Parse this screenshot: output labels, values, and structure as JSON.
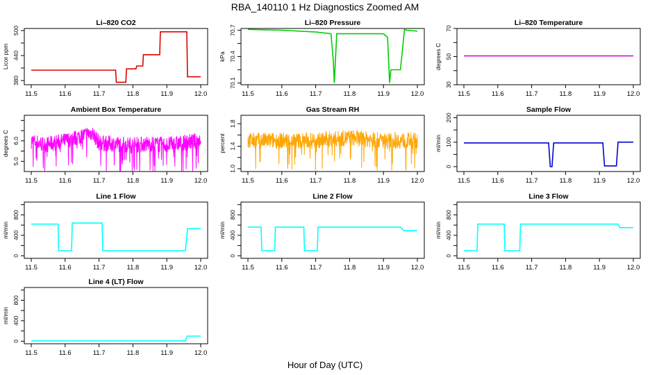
{
  "figure": {
    "title": "RBA_140110  1 Hz Diagnostics Zoomed AM",
    "xlabel": "Hour of Day (UTC)"
  },
  "chart_data": [
    {
      "type": "line",
      "title": "Li–820 CO2",
      "ylabel": "Licor ppm",
      "color": "#dd0000",
      "xlim": [
        11.5,
        12.0
      ],
      "xticks": [
        "11.5",
        "11.6",
        "11.7",
        "11.8",
        "11.9",
        "12.0"
      ],
      "ylim": [
        370,
        505
      ],
      "yticks": [
        "380",
        "440",
        "500"
      ],
      "ytick_values": [
        380,
        440,
        500
      ],
      "minor_yticks": [
        410,
        470
      ],
      "series": [
        {
          "x": [
            11.5,
            11.749,
            11.751,
            11.779,
            11.781,
            11.809,
            11.811,
            11.829,
            11.831,
            11.879,
            11.881,
            11.959,
            11.961,
            12.0
          ],
          "y": [
            405,
            405,
            376,
            376,
            408,
            408,
            415,
            415,
            442,
            442,
            497,
            497,
            389,
            389
          ]
        }
      ]
    },
    {
      "type": "line",
      "title": "Li–820 Pressure",
      "ylabel": "kPa",
      "color": "#00cc00",
      "xlim": [
        11.5,
        12.0
      ],
      "xticks": [
        "11.5",
        "11.6",
        "11.7",
        "11.8",
        "11.9",
        "12.0"
      ],
      "ylim": [
        70.08,
        70.72
      ],
      "yticks": [
        "70.1",
        "70.4",
        "70.7"
      ],
      "ytick_values": [
        70.1,
        70.4,
        70.7
      ],
      "minor_yticks": [
        70.25,
        70.55
      ],
      "series": [
        {
          "x": [
            11.5,
            11.6,
            11.7,
            11.745,
            11.752,
            11.755,
            11.762,
            11.8,
            11.9,
            11.912,
            11.918,
            11.922,
            11.93,
            11.95,
            11.962,
            11.968,
            12.0
          ],
          "y": [
            70.71,
            70.7,
            70.68,
            70.66,
            70.35,
            70.1,
            70.66,
            70.66,
            70.66,
            70.62,
            70.1,
            70.25,
            70.25,
            70.25,
            70.71,
            70.7,
            70.69
          ]
        }
      ]
    },
    {
      "type": "line",
      "title": "Li–820 Temperature",
      "ylabel": "degrees C",
      "color": "#cc00cc",
      "xlim": [
        11.5,
        12.0
      ],
      "xticks": [
        "11.5",
        "11.6",
        "11.7",
        "11.8",
        "11.9",
        "12.0"
      ],
      "ylim": [
        30,
        70
      ],
      "yticks": [
        "30",
        "50",
        "70"
      ],
      "ytick_values": [
        30,
        50,
        70
      ],
      "minor_yticks": [
        40,
        60
      ],
      "series": [
        {
          "x": [
            11.5,
            12.0
          ],
          "y": [
            50.5,
            50.5
          ]
        }
      ]
    },
    {
      "type": "line",
      "title": "Ambient Box Temperature",
      "ylabel": "degrees C",
      "color": "#ff00ff",
      "xlim": [
        11.5,
        12.0
      ],
      "xticks": [
        "11.5",
        "11.6",
        "11.7",
        "11.8",
        "11.9",
        "12.0"
      ],
      "ylim": [
        4.5,
        7.25
      ],
      "yticks": [
        "5.0",
        "6.0"
      ],
      "ytick_values": [
        5.0,
        6.0
      ],
      "minor_yticks": [
        5.5,
        6.5,
        7.0
      ],
      "series": [
        {
          "x": [
            11.5,
            11.54,
            11.6,
            11.64,
            11.68,
            11.7,
            11.75,
            11.8,
            11.85,
            11.9,
            11.95,
            11.99,
            12.0
          ],
          "y": [
            6.0,
            5.8,
            6.0,
            6.2,
            6.4,
            5.9,
            5.85,
            5.8,
            5.85,
            5.8,
            5.9,
            6.0,
            6.1
          ]
        }
      ]
    },
    {
      "type": "line",
      "title": "Gas Stream RH",
      "ylabel": "percent",
      "color": "#ffa500",
      "xlim": [
        11.5,
        12.0
      ],
      "xticks": [
        "11.5",
        "11.6",
        "11.7",
        "11.8",
        "11.9",
        "12.0"
      ],
      "ylim": [
        0.95,
        1.95
      ],
      "yticks": [
        "1.0",
        "1.4",
        "1.8"
      ],
      "ytick_values": [
        1.0,
        1.4,
        1.8
      ],
      "minor_yticks": [
        1.2,
        1.6
      ],
      "series": [
        {
          "x": [
            11.5,
            11.6,
            11.7,
            11.8,
            11.9,
            12.0
          ],
          "y": [
            1.5,
            1.5,
            1.5,
            1.55,
            1.5,
            1.5
          ]
        }
      ]
    },
    {
      "type": "line",
      "title": "Sample Flow",
      "ylabel": "ml/min",
      "color": "#0000cc",
      "xlim": [
        11.5,
        12.0
      ],
      "xticks": [
        "11.5",
        "11.6",
        "11.7",
        "11.8",
        "11.9",
        "12.0"
      ],
      "ylim": [
        -20,
        210
      ],
      "yticks": [
        "0",
        "100",
        "200"
      ],
      "ytick_values": [
        0,
        100,
        200
      ],
      "minor_yticks": [
        50,
        150
      ],
      "series": [
        {
          "x": [
            11.5,
            11.75,
            11.755,
            11.76,
            11.765,
            11.91,
            11.915,
            11.95,
            11.955,
            12.0
          ],
          "y": [
            97,
            97,
            0,
            0,
            97,
            97,
            3,
            3,
            100,
            100
          ]
        }
      ]
    },
    {
      "type": "line",
      "title": "Line 1 Flow",
      "ylabel": "ml/min",
      "color": "#00ffff",
      "xlim": [
        11.5,
        12.0
      ],
      "xticks": [
        "11.5",
        "11.6",
        "11.7",
        "11.8",
        "11.9",
        "12.0"
      ],
      "ylim": [
        -50,
        1050
      ],
      "yticks": [
        "0",
        "400",
        "800"
      ],
      "ytick_values": [
        0,
        400,
        800
      ],
      "minor_yticks": [
        200,
        600,
        1000
      ],
      "series": [
        {
          "x": [
            11.5,
            11.579,
            11.581,
            11.619,
            11.621,
            11.709,
            11.711,
            11.955,
            11.961,
            12.0
          ],
          "y": [
            620,
            620,
            100,
            100,
            640,
            640,
            100,
            100,
            530,
            530
          ]
        }
      ]
    },
    {
      "type": "line",
      "title": "Line 2 Flow",
      "ylabel": "ml/min",
      "color": "#00ffff",
      "xlim": [
        11.5,
        12.0
      ],
      "xticks": [
        "11.5",
        "11.6",
        "11.7",
        "11.8",
        "11.9",
        "12.0"
      ],
      "ylim": [
        -50,
        1050
      ],
      "yticks": [
        "0",
        "400",
        "800"
      ],
      "ytick_values": [
        0,
        400,
        800
      ],
      "minor_yticks": [
        200,
        600,
        1000
      ],
      "series": [
        {
          "x": [
            11.5,
            11.539,
            11.541,
            11.579,
            11.581,
            11.665,
            11.667,
            11.705,
            11.707,
            11.95,
            11.96,
            12.0
          ],
          "y": [
            560,
            560,
            100,
            100,
            560,
            560,
            100,
            100,
            560,
            560,
            490,
            490
          ]
        }
      ]
    },
    {
      "type": "line",
      "title": "Line 3 Flow",
      "ylabel": "ml/min",
      "color": "#00ffff",
      "xlim": [
        11.5,
        12.0
      ],
      "xticks": [
        "11.5",
        "11.6",
        "11.7",
        "11.8",
        "11.9",
        "12.0"
      ],
      "ylim": [
        -50,
        1050
      ],
      "yticks": [
        "0",
        "400",
        "800"
      ],
      "ytick_values": [
        0,
        400,
        800
      ],
      "minor_yticks": [
        200,
        600,
        1000
      ],
      "series": [
        {
          "x": [
            11.5,
            11.539,
            11.541,
            11.619,
            11.621,
            11.665,
            11.667,
            11.955,
            11.96,
            12.0
          ],
          "y": [
            100,
            100,
            620,
            620,
            100,
            100,
            620,
            620,
            550,
            550
          ]
        }
      ]
    },
    {
      "type": "line",
      "title": "Line 4 (LT) Flow",
      "ylabel": "ml/min",
      "color": "#00ffff",
      "xlim": [
        11.5,
        12.0
      ],
      "xticks": [
        "11.5",
        "11.6",
        "11.7",
        "11.8",
        "11.9",
        "12.0"
      ],
      "ylim": [
        -50,
        1050
      ],
      "yticks": [
        "0",
        "400",
        "800"
      ],
      "ytick_values": [
        0,
        400,
        800
      ],
      "minor_yticks": [
        200,
        600,
        1000
      ],
      "series": [
        {
          "x": [
            11.5,
            11.955,
            11.96,
            12.0
          ],
          "y": [
            5,
            5,
            100,
            100
          ]
        }
      ]
    }
  ]
}
